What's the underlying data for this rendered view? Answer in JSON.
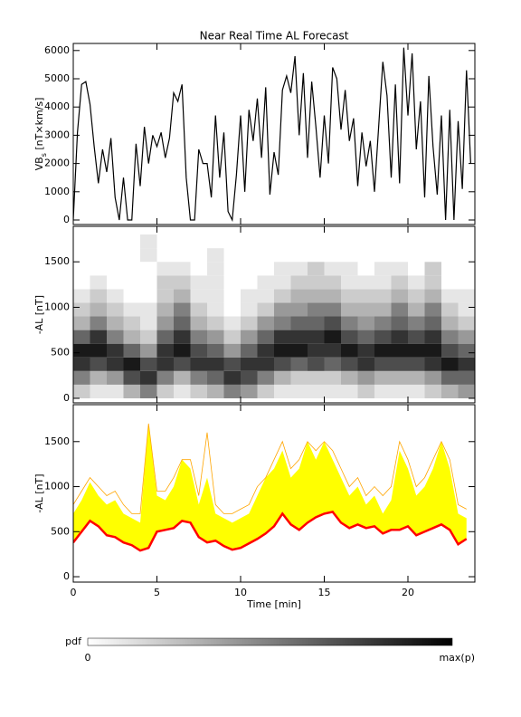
{
  "chart_data": [
    {
      "type": "line",
      "title": "Near Real Time AL Forecast",
      "ylabel_parts": [
        "VB",
        "s",
        " [nT×km/s]"
      ],
      "xlim": [
        0,
        24
      ],
      "ylim": [
        -160,
        6250
      ],
      "yticks": [
        0,
        1000,
        2000,
        3000,
        4000,
        5000,
        6000
      ],
      "x": [
        0,
        0.25,
        0.5,
        0.75,
        1,
        1.25,
        1.5,
        1.75,
        2,
        2.25,
        2.5,
        2.75,
        3,
        3.25,
        3.5,
        3.75,
        4,
        4.25,
        4.5,
        4.75,
        5,
        5.25,
        5.5,
        5.75,
        6,
        6.25,
        6.5,
        6.75,
        7,
        7.25,
        7.5,
        7.75,
        8,
        8.25,
        8.5,
        8.75,
        9,
        9.25,
        9.5,
        9.75,
        10,
        10.25,
        10.5,
        10.75,
        11,
        11.25,
        11.5,
        11.75,
        12,
        12.25,
        12.5,
        12.75,
        13,
        13.25,
        13.5,
        13.75,
        14,
        14.25,
        14.5,
        14.75,
        15,
        15.25,
        15.5,
        15.75,
        16,
        16.25,
        16.5,
        16.75,
        17,
        17.25,
        17.5,
        17.75,
        18,
        18.25,
        18.5,
        18.75,
        19,
        19.25,
        19.5,
        19.75,
        20,
        20.25,
        20.5,
        20.75,
        21,
        21.25,
        21.5,
        21.75,
        22,
        22.25,
        22.5,
        22.75,
        23,
        23.25,
        23.5,
        23.75
      ],
      "series": [
        {
          "color": "#000000",
          "values": [
            0,
            3100,
            4800,
            4900,
            4100,
            2600,
            1300,
            2500,
            1700,
            2900,
            800,
            0,
            1500,
            0,
            0,
            2700,
            1200,
            3300,
            2000,
            3000,
            2600,
            3100,
            2200,
            2900,
            4500,
            4200,
            4800,
            1500,
            0,
            0,
            2500,
            2000,
            2000,
            800,
            3700,
            1500,
            3100,
            300,
            0,
            1600,
            3700,
            1000,
            3900,
            2800,
            4300,
            2200,
            4700,
            900,
            2400,
            1600,
            4600,
            5100,
            4500,
            5800,
            3000,
            5200,
            2200,
            4900,
            3300,
            1500,
            3700,
            2000,
            5400,
            5000,
            3200,
            4600,
            2800,
            3600,
            1200,
            3100,
            1900,
            2800,
            1000,
            3300,
            5600,
            4400,
            1500,
            4800,
            1300,
            6100,
            3700,
            5900,
            2500,
            4200,
            800,
            5100,
            2600,
            900,
            3700,
            0,
            3900,
            0,
            3500,
            1100,
            5300,
            2000
          ]
        }
      ]
    },
    {
      "type": "heatmap",
      "ylabel": "-AL [nT]",
      "xlim": [
        0,
        24
      ],
      "ylim": [
        -50,
        1890
      ],
      "yticks": [
        0,
        500,
        1000,
        1500
      ],
      "x_bins": [
        0,
        1,
        2,
        3,
        4,
        5,
        6,
        7,
        8,
        9,
        10,
        11,
        12,
        13,
        14,
        15,
        16,
        17,
        18,
        19,
        20,
        21,
        22,
        23,
        24
      ],
      "y_bins": [
        0,
        150,
        300,
        450,
        600,
        750,
        900,
        1050,
        1200,
        1350,
        1500,
        1650,
        1800
      ],
      "z": [
        [
          0.2,
          0.1,
          0.1,
          0.3,
          0.5,
          0.2,
          0.1,
          0.2,
          0.3,
          0.5,
          0.4,
          0.2,
          0.1,
          0.1,
          0.1,
          0.1,
          0.1,
          0.2,
          0.1,
          0.1,
          0.1,
          0.2,
          0.3,
          0.4
        ],
        [
          0.5,
          0.3,
          0.4,
          0.7,
          0.8,
          0.5,
          0.3,
          0.5,
          0.6,
          0.8,
          0.7,
          0.5,
          0.3,
          0.2,
          0.2,
          0.2,
          0.3,
          0.4,
          0.3,
          0.3,
          0.3,
          0.4,
          0.6,
          0.6
        ],
        [
          0.8,
          0.7,
          0.8,
          0.9,
          0.7,
          0.8,
          0.7,
          0.8,
          0.8,
          0.7,
          0.8,
          0.8,
          0.7,
          0.6,
          0.7,
          0.6,
          0.7,
          0.8,
          0.7,
          0.7,
          0.7,
          0.8,
          0.9,
          0.8
        ],
        [
          0.9,
          0.9,
          0.8,
          0.6,
          0.4,
          0.8,
          0.9,
          0.7,
          0.6,
          0.4,
          0.6,
          0.8,
          0.9,
          0.9,
          0.8,
          0.8,
          0.9,
          0.8,
          0.9,
          0.9,
          0.9,
          0.9,
          0.7,
          0.6
        ],
        [
          0.6,
          0.8,
          0.5,
          0.3,
          0.2,
          0.6,
          0.8,
          0.5,
          0.4,
          0.2,
          0.4,
          0.6,
          0.8,
          0.8,
          0.8,
          0.9,
          0.7,
          0.6,
          0.7,
          0.8,
          0.7,
          0.8,
          0.5,
          0.4
        ],
        [
          0.3,
          0.5,
          0.3,
          0.2,
          0.1,
          0.4,
          0.6,
          0.3,
          0.2,
          0.1,
          0.2,
          0.4,
          0.5,
          0.6,
          0.6,
          0.7,
          0.5,
          0.4,
          0.5,
          0.6,
          0.5,
          0.6,
          0.3,
          0.2
        ],
        [
          0.2,
          0.3,
          0.2,
          0.1,
          0.1,
          0.3,
          0.5,
          0.2,
          0.1,
          0,
          0.1,
          0.2,
          0.4,
          0.4,
          0.5,
          0.5,
          0.3,
          0.3,
          0.3,
          0.5,
          0.3,
          0.5,
          0.2,
          0.1
        ],
        [
          0.1,
          0.2,
          0.1,
          0,
          0,
          0.2,
          0.3,
          0.1,
          0.1,
          0,
          0.1,
          0.1,
          0.2,
          0.3,
          0.3,
          0.3,
          0.2,
          0.2,
          0.2,
          0.3,
          0.2,
          0.3,
          0.1,
          0.1
        ],
        [
          0,
          0.1,
          0,
          0,
          0,
          0.2,
          0.2,
          0.1,
          0.1,
          0,
          0,
          0.1,
          0.1,
          0.2,
          0.2,
          0.2,
          0.1,
          0.1,
          0.1,
          0.2,
          0.1,
          0.2,
          0,
          0
        ],
        [
          0,
          0,
          0,
          0,
          0,
          0.1,
          0.1,
          0,
          0.1,
          0,
          0,
          0,
          0.1,
          0.1,
          0.2,
          0.1,
          0.1,
          0,
          0.1,
          0.1,
          0,
          0.2,
          0,
          0
        ],
        [
          0,
          0,
          0,
          0,
          0.1,
          0,
          0,
          0,
          0.1,
          0,
          0,
          0,
          0,
          0,
          0,
          0,
          0,
          0,
          0,
          0,
          0,
          0,
          0,
          0
        ],
        [
          0,
          0,
          0,
          0,
          0.1,
          0,
          0,
          0,
          0,
          0,
          0,
          0,
          0,
          0,
          0,
          0,
          0,
          0,
          0,
          0,
          0,
          0,
          0,
          0
        ]
      ],
      "colorbar_labels": [
        "pdf",
        "0",
        "max(p)"
      ]
    },
    {
      "type": "band",
      "ylabel": "-AL [nT]",
      "xlabel": "Time [min]",
      "xlim": [
        0,
        24
      ],
      "ylim": [
        -60,
        1910
      ],
      "yticks": [
        0,
        500,
        1000,
        1500
      ],
      "xticks": [
        0,
        5,
        10,
        15,
        20
      ],
      "x": [
        0,
        0.5,
        1,
        1.5,
        2,
        2.5,
        3,
        3.5,
        4,
        4.5,
        5,
        5.5,
        6,
        6.5,
        7,
        7.5,
        8,
        8.5,
        9,
        9.5,
        10,
        10.5,
        11,
        11.5,
        12,
        12.5,
        13,
        13.5,
        14,
        14.5,
        15,
        15.5,
        16,
        16.5,
        17,
        17.5,
        18,
        18.5,
        19,
        19.5,
        20,
        20.5,
        21,
        21.5,
        22,
        22.5,
        23,
        23.5
      ],
      "series": [
        {
          "color": "#ff0000",
          "values": [
            380,
            500,
            620,
            560,
            460,
            440,
            380,
            350,
            290,
            320,
            500,
            520,
            540,
            620,
            600,
            440,
            380,
            400,
            340,
            300,
            320,
            370,
            420,
            480,
            560,
            700,
            580,
            520,
            600,
            660,
            700,
            720,
            600,
            540,
            580,
            540,
            560,
            480,
            520,
            520,
            560,
            460,
            500,
            540,
            580,
            520,
            360,
            420
          ]
        },
        {
          "color": "#ffff00",
          "values": [
            700,
            850,
            1050,
            900,
            800,
            850,
            700,
            650,
            600,
            1700,
            900,
            850,
            1000,
            1300,
            1200,
            800,
            1100,
            700,
            650,
            600,
            650,
            700,
            900,
            1100,
            1200,
            1400,
            1100,
            1200,
            1500,
            1300,
            1500,
            1300,
            1100,
            900,
            1000,
            800,
            900,
            700,
            850,
            1400,
            1200,
            900,
            1000,
            1200,
            1500,
            1200,
            700,
            650
          ]
        },
        {
          "color": "#ffa500",
          "values": [
            800,
            950,
            1100,
            1000,
            900,
            950,
            800,
            700,
            700,
            1700,
            950,
            950,
            1100,
            1300,
            1300,
            900,
            1600,
            800,
            700,
            700,
            750,
            800,
            1000,
            1100,
            1300,
            1500,
            1200,
            1300,
            1500,
            1400,
            1500,
            1400,
            1200,
            1000,
            1100,
            900,
            1000,
            900,
            1000,
            1500,
            1300,
            1000,
            1100,
            1300,
            1500,
            1300,
            800,
            750
          ]
        }
      ]
    }
  ]
}
